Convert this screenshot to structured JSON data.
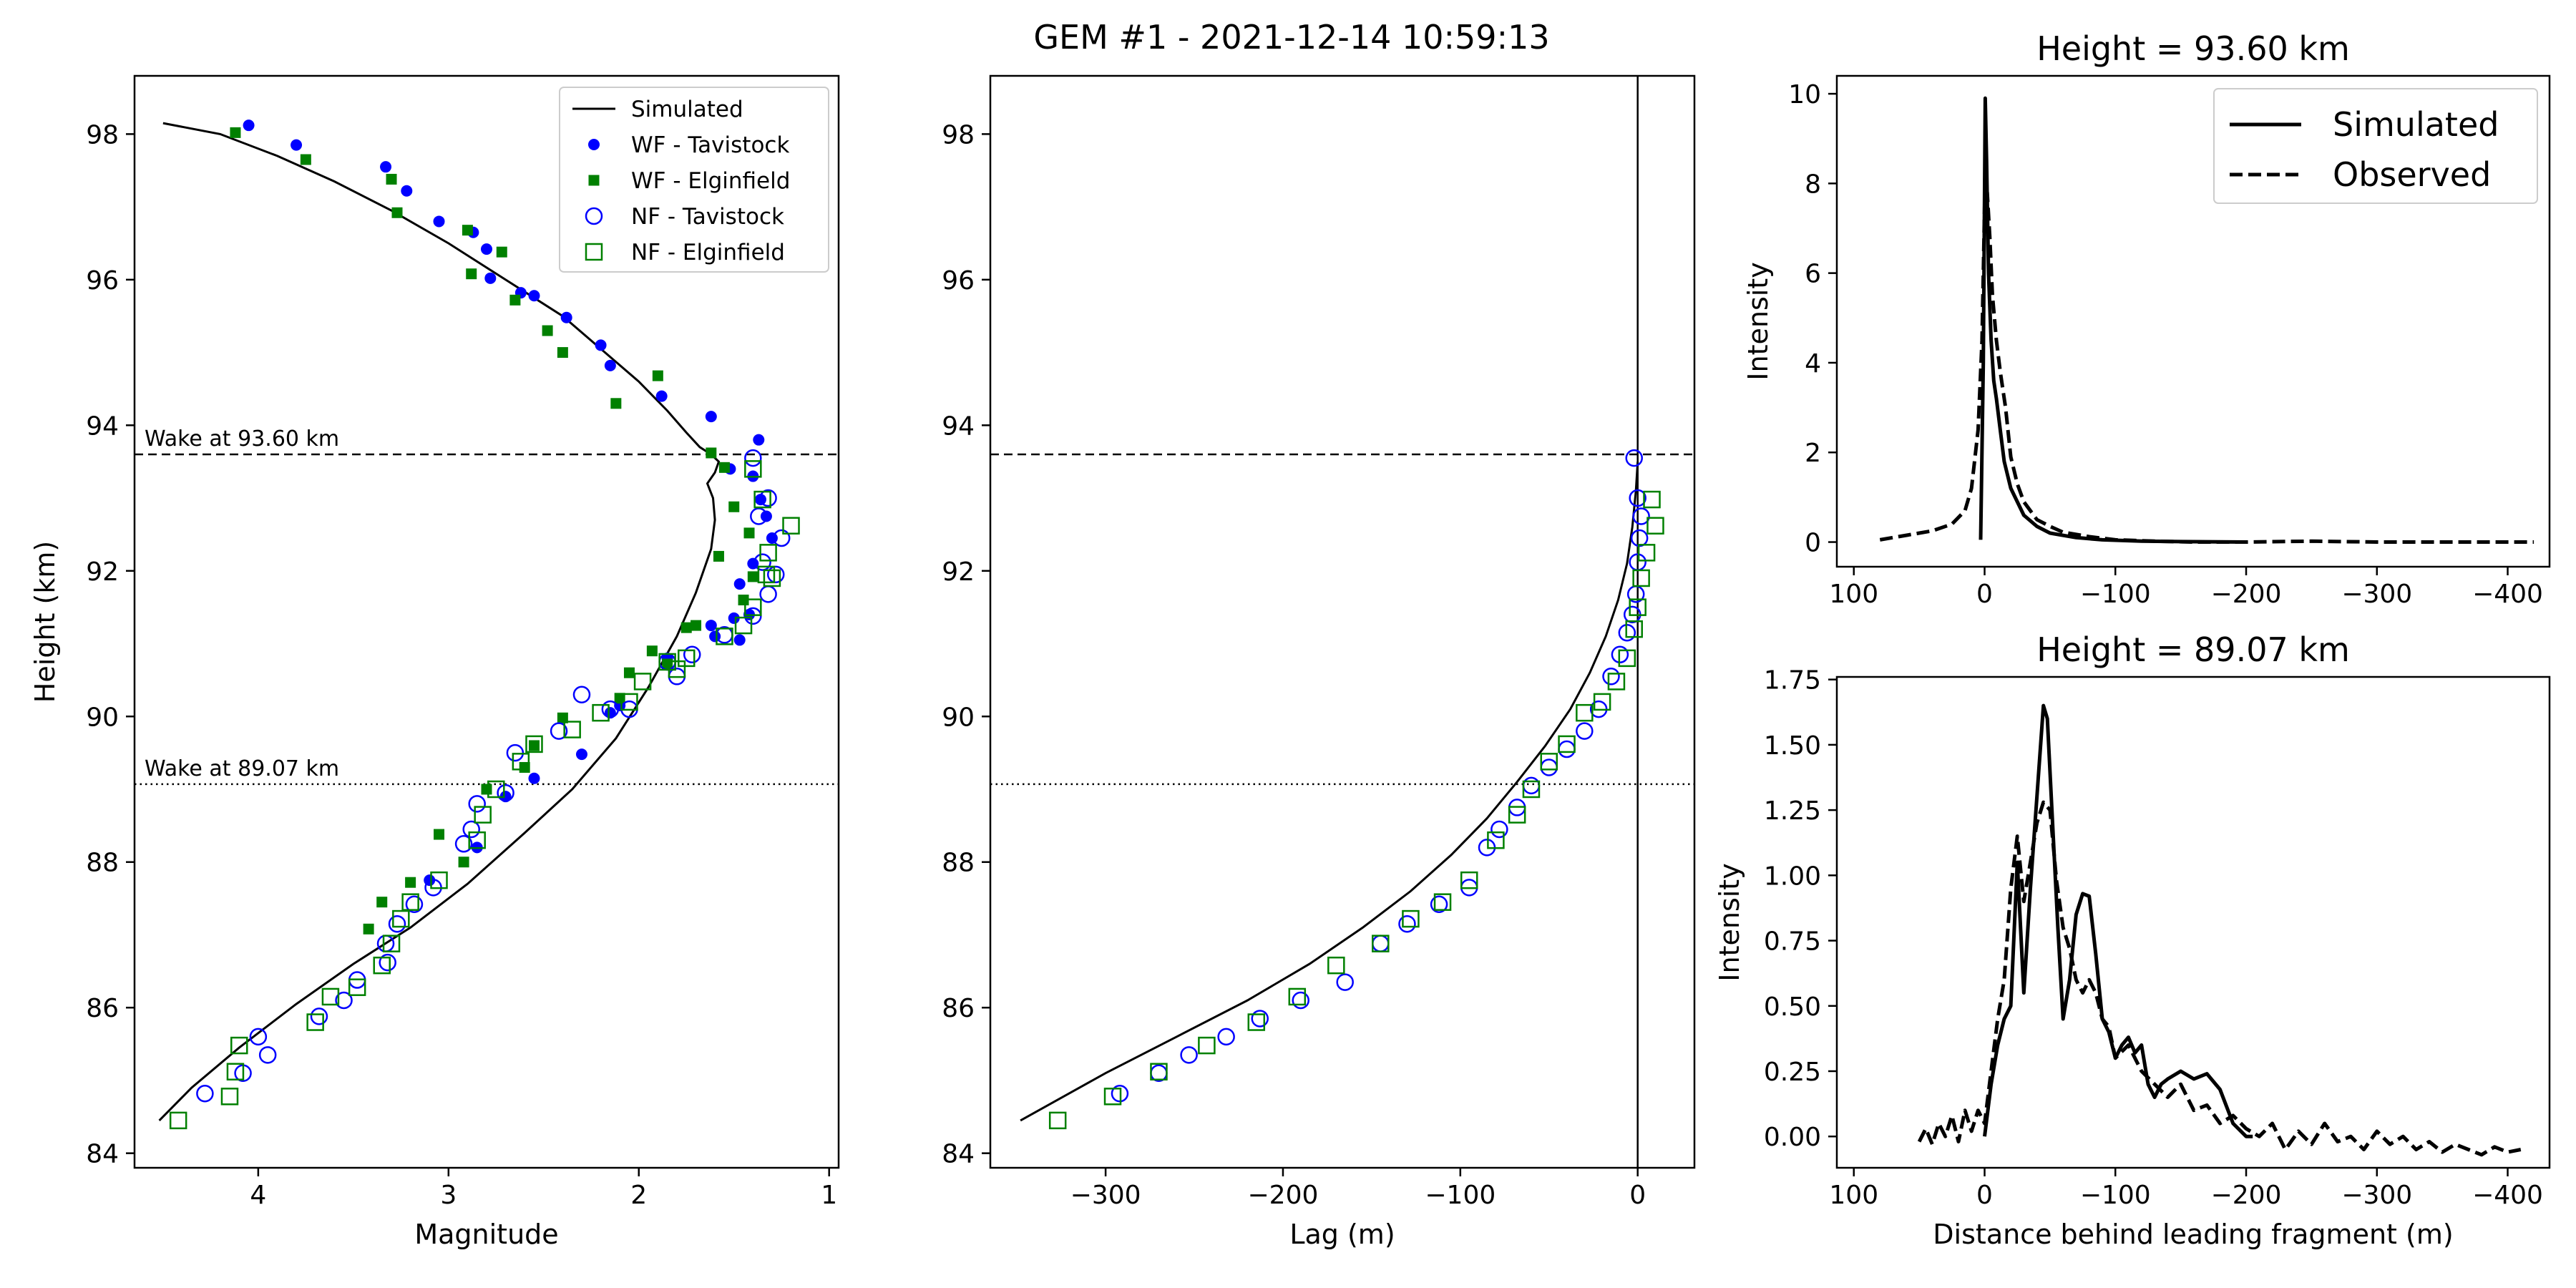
{
  "figure": {
    "suptitle": "GEM #1 - 2021-12-14 10:59:13"
  },
  "chart_data": [
    {
      "type": "scatter",
      "panel": "magnitude",
      "xlabel": "Magnitude",
      "ylabel": "Height (km)",
      "xlim": [
        4.65,
        0.95
      ],
      "ylim": [
        83.8,
        98.8
      ],
      "x_ticks": [
        4,
        3,
        2,
        1
      ],
      "y_ticks": [
        84,
        86,
        88,
        90,
        92,
        94,
        96,
        98
      ],
      "x_inverted": true,
      "legend_position": "upper right",
      "wake_lines": [
        {
          "height": 93.6,
          "label": "Wake at 93.60 km",
          "style": "dashed"
        },
        {
          "height": 89.07,
          "label": "Wake at 89.07 km",
          "style": "dotted"
        }
      ],
      "series": [
        {
          "name": "Simulated",
          "kind": "line",
          "color": "#000000",
          "x": [
            4.5,
            4.2,
            3.9,
            3.6,
            3.3,
            3.0,
            2.7,
            2.4,
            2.2,
            2.0,
            1.85,
            1.75,
            1.68,
            1.62,
            1.58,
            1.6,
            1.64,
            1.61,
            1.6,
            1.62,
            1.7,
            1.8,
            1.95,
            2.12,
            2.35,
            2.6,
            2.9,
            3.2,
            3.5,
            3.8,
            4.1,
            4.35,
            4.52
          ],
          "y": [
            98.15,
            98.0,
            97.7,
            97.35,
            96.95,
            96.5,
            96.0,
            95.5,
            95.05,
            94.6,
            94.2,
            93.9,
            93.7,
            93.6,
            93.5,
            93.35,
            93.2,
            93.0,
            92.7,
            92.3,
            91.7,
            91.1,
            90.4,
            89.7,
            89.0,
            88.4,
            87.7,
            87.1,
            86.6,
            86.05,
            85.45,
            84.9,
            84.45
          ]
        },
        {
          "name": "WF - Tavistock",
          "kind": "dot",
          "color": "#0000ff",
          "x": [
            4.05,
            3.8,
            3.33,
            3.22,
            3.05,
            2.87,
            2.8,
            2.78,
            2.62,
            2.55,
            2.38,
            2.2,
            2.15,
            1.88,
            1.62,
            1.52,
            1.37,
            1.4,
            1.36,
            1.33,
            1.3,
            1.4,
            1.47,
            1.42,
            1.5,
            1.47,
            1.6,
            1.62,
            1.85,
            2.1,
            2.15,
            2.3,
            2.55,
            2.7,
            2.85,
            3.1
          ],
          "y": [
            98.12,
            97.85,
            97.55,
            97.22,
            96.8,
            96.65,
            96.42,
            96.02,
            95.82,
            95.78,
            95.48,
            95.1,
            94.82,
            94.4,
            94.12,
            93.4,
            93.8,
            93.3,
            92.98,
            92.75,
            92.45,
            92.1,
            91.82,
            91.4,
            91.35,
            91.05,
            91.1,
            91.25,
            90.8,
            90.15,
            90.05,
            89.48,
            89.15,
            88.9,
            88.2,
            87.75
          ]
        },
        {
          "name": "WF - Elginfield",
          "kind": "square",
          "color": "#008000",
          "x": [
            4.12,
            3.75,
            3.3,
            3.27,
            2.9,
            2.88,
            2.72,
            2.65,
            2.48,
            2.4,
            2.12,
            1.9,
            1.62,
            1.55,
            1.5,
            1.42,
            1.4,
            1.45,
            1.58,
            1.7,
            1.75,
            1.85,
            1.93,
            2.05,
            2.1,
            2.4,
            2.55,
            2.6,
            2.8,
            2.92,
            3.05,
            3.2,
            3.35,
            3.42
          ],
          "y": [
            98.02,
            97.65,
            97.38,
            96.92,
            96.68,
            96.08,
            96.38,
            95.72,
            95.3,
            95.0,
            94.3,
            94.68,
            93.62,
            93.42,
            92.88,
            92.52,
            91.92,
            91.6,
            92.2,
            91.25,
            91.22,
            90.72,
            90.9,
            90.6,
            90.25,
            89.98,
            89.6,
            89.3,
            89.0,
            88.0,
            88.38,
            87.72,
            87.45,
            87.08
          ]
        },
        {
          "name": "NF - Tavistock",
          "kind": "open-circle",
          "color": "#0000ff",
          "x": [
            1.4,
            1.32,
            1.37,
            1.25,
            1.35,
            1.28,
            1.32,
            1.4,
            1.55,
            1.72,
            1.8,
            1.85,
            2.05,
            2.15,
            2.3,
            2.42,
            2.65,
            2.7,
            2.85,
            2.88,
            2.92,
            3.08,
            3.18,
            3.27,
            3.32,
            3.33,
            3.48,
            3.55,
            3.68,
            4.0,
            4.08,
            4.28,
            3.95
          ],
          "y": [
            93.55,
            93.0,
            92.75,
            92.45,
            92.12,
            91.95,
            91.68,
            91.38,
            91.12,
            90.85,
            90.55,
            90.75,
            90.1,
            90.1,
            90.3,
            89.8,
            89.5,
            88.95,
            88.8,
            88.45,
            88.25,
            87.65,
            87.42,
            87.15,
            86.62,
            86.88,
            86.38,
            86.1,
            85.88,
            85.6,
            85.1,
            84.82,
            85.35
          ]
        },
        {
          "name": "NF - Elginfield",
          "kind": "open-square",
          "color": "#008000",
          "x": [
            1.4,
            1.35,
            1.32,
            1.2,
            1.33,
            1.3,
            1.4,
            1.45,
            1.55,
            1.75,
            1.8,
            1.85,
            1.98,
            2.05,
            2.2,
            2.35,
            2.55,
            2.62,
            2.75,
            2.82,
            2.85,
            3.05,
            3.2,
            3.25,
            3.3,
            3.35,
            3.48,
            3.62,
            3.7,
            4.1,
            4.12,
            4.15,
            4.42
          ],
          "y": [
            93.4,
            92.98,
            92.25,
            92.62,
            91.95,
            91.9,
            91.5,
            91.25,
            91.1,
            90.8,
            90.65,
            90.75,
            90.48,
            90.2,
            90.05,
            89.82,
            89.62,
            89.38,
            89.0,
            88.65,
            88.3,
            87.75,
            87.45,
            87.22,
            86.88,
            86.58,
            86.28,
            86.15,
            85.8,
            85.48,
            85.12,
            84.78,
            84.45
          ]
        }
      ]
    },
    {
      "type": "scatter",
      "panel": "lag",
      "xlabel": "Lag (m)",
      "ylabel": "",
      "xlim": [
        -365,
        32
      ],
      "ylim": [
        83.8,
        98.8
      ],
      "x_ticks": [
        -300,
        -200,
        -100,
        0
      ],
      "y_ticks": [
        84,
        86,
        88,
        90,
        92,
        94,
        96,
        98
      ],
      "vertical_line_x": 0,
      "wake_lines": [
        {
          "height": 93.6,
          "style": "dashed"
        },
        {
          "height": 89.07,
          "style": "dotted"
        }
      ],
      "series": [
        {
          "name": "Simulated",
          "kind": "line",
          "color": "#000000",
          "x": [
            -348,
            -300,
            -260,
            -220,
            -185,
            -155,
            -128,
            -105,
            -85,
            -68,
            -52,
            -38,
            -27,
            -18,
            -11,
            -6,
            -3,
            -1,
            0
          ],
          "y": [
            84.45,
            85.1,
            85.6,
            86.1,
            86.6,
            87.1,
            87.6,
            88.1,
            88.6,
            89.1,
            89.6,
            90.1,
            90.6,
            91.1,
            91.6,
            92.1,
            92.6,
            93.1,
            93.5
          ]
        },
        {
          "name": "NF - Tavistock",
          "kind": "open-circle",
          "color": "#0000ff",
          "x": [
            -292,
            -270,
            -253,
            -232,
            -213,
            -190,
            -165,
            -145,
            -130,
            -112,
            -95,
            -85,
            -78,
            -68,
            -60,
            -50,
            -40,
            -30,
            -22,
            -15,
            -10,
            -6,
            -3,
            -1,
            0,
            1,
            2,
            0,
            -2
          ],
          "y": [
            84.82,
            85.1,
            85.35,
            85.6,
            85.85,
            86.1,
            86.35,
            86.88,
            87.15,
            87.42,
            87.65,
            88.2,
            88.45,
            88.75,
            89.05,
            89.3,
            89.55,
            89.8,
            90.1,
            90.55,
            90.85,
            91.15,
            91.4,
            91.68,
            92.12,
            92.45,
            92.75,
            93.0,
            93.55
          ]
        },
        {
          "name": "NF - Elginfield",
          "kind": "open-square",
          "color": "#008000",
          "x": [
            -327,
            -296,
            -270,
            -243,
            -215,
            -192,
            -170,
            -145,
            -128,
            -110,
            -95,
            -80,
            -68,
            -60,
            -50,
            -40,
            -30,
            -20,
            -12,
            -6,
            -2,
            0,
            2,
            5,
            10,
            8
          ],
          "y": [
            84.45,
            84.78,
            85.12,
            85.48,
            85.8,
            86.15,
            86.58,
            86.88,
            87.22,
            87.45,
            87.75,
            88.3,
            88.65,
            89.0,
            89.38,
            89.62,
            90.05,
            90.2,
            90.48,
            90.8,
            91.2,
            91.5,
            91.9,
            92.25,
            92.62,
            92.98
          ]
        }
      ]
    },
    {
      "type": "line",
      "panel": "profile-top",
      "title": "Height = 93.60 km",
      "ylabel": "Intensity",
      "xlim": [
        113,
        -432
      ],
      "ylim": [
        -0.55,
        10.4
      ],
      "x_ticks": [
        100,
        0,
        -100,
        -200,
        -300,
        -400
      ],
      "x_tick_labels": [
        "100",
        "0",
        "−100",
        "−200",
        "−300",
        "−400"
      ],
      "y_ticks": [
        0,
        2,
        4,
        6,
        8,
        10
      ],
      "legend_position": "upper right",
      "series": [
        {
          "name": "Simulated",
          "style": "solid",
          "x": [
            3,
            1,
            -0.5,
            -1.5,
            -3,
            -5,
            -7,
            -9,
            -12,
            -15,
            -20,
            -30,
            -40,
            -50,
            -70,
            -90,
            -120,
            -150,
            -200
          ],
          "y": [
            0.05,
            4.0,
            9.9,
            8.5,
            6.0,
            4.5,
            3.6,
            3.2,
            2.5,
            1.8,
            1.2,
            0.6,
            0.35,
            0.2,
            0.1,
            0.05,
            0.02,
            0.01,
            0.0
          ]
        },
        {
          "name": "Observed",
          "style": "dashed",
          "x": [
            80,
            60,
            40,
            25,
            15,
            10,
            5,
            2,
            0,
            -2,
            -4,
            -6,
            -9,
            -12,
            -16,
            -20,
            -25,
            -30,
            -40,
            -50,
            -60,
            -80,
            -100,
            -130,
            -160,
            -200,
            -250,
            -300,
            -350,
            -400,
            -420
          ],
          "y": [
            0.05,
            0.15,
            0.25,
            0.4,
            0.7,
            1.2,
            2.5,
            4.5,
            7.5,
            7.8,
            6.8,
            5.5,
            4.5,
            3.8,
            3.0,
            1.9,
            1.3,
            0.9,
            0.5,
            0.35,
            0.22,
            0.12,
            0.05,
            0.02,
            0.0,
            0.0,
            0.02,
            0.0,
            0.0,
            0.0,
            0.0
          ]
        }
      ]
    },
    {
      "type": "line",
      "panel": "profile-bottom",
      "title": "Height = 89.07 km",
      "xlabel": "Distance behind leading fragment (m)",
      "ylabel": "Intensity",
      "xlim": [
        113,
        -432
      ],
      "ylim": [
        -0.12,
        1.76
      ],
      "x_ticks": [
        100,
        0,
        -100,
        -200,
        -300,
        -400
      ],
      "x_tick_labels": [
        "100",
        "0",
        "−100",
        "−200",
        "−300",
        "−400"
      ],
      "y_ticks": [
        0.0,
        0.25,
        0.5,
        0.75,
        1.0,
        1.25,
        1.5,
        1.75
      ],
      "y_tick_labels": [
        "0.00",
        "0.25",
        "0.50",
        "0.75",
        "1.00",
        "1.25",
        "1.50",
        "1.75"
      ],
      "series": [
        {
          "name": "Simulated",
          "style": "solid",
          "x": [
            0,
            -5,
            -10,
            -15,
            -20,
            -25,
            -30,
            -35,
            -40,
            -45,
            -48,
            -52,
            -56,
            -60,
            -65,
            -70,
            -75,
            -80,
            -85,
            -90,
            -95,
            -100,
            -105,
            -110,
            -115,
            -120,
            -125,
            -130,
            -135,
            -140,
            -150,
            -160,
            -170,
            -180,
            -190,
            -200,
            -205
          ],
          "y": [
            0.0,
            0.2,
            0.35,
            0.45,
            0.5,
            1.05,
            0.55,
            0.95,
            1.3,
            1.65,
            1.6,
            1.2,
            0.8,
            0.45,
            0.6,
            0.85,
            0.93,
            0.92,
            0.7,
            0.45,
            0.4,
            0.3,
            0.35,
            0.38,
            0.32,
            0.35,
            0.2,
            0.15,
            0.2,
            0.22,
            0.25,
            0.22,
            0.24,
            0.18,
            0.05,
            0.0,
            0.0
          ]
        },
        {
          "name": "Observed",
          "style": "dashed",
          "x": [
            50,
            45,
            40,
            35,
            30,
            25,
            20,
            15,
            10,
            5,
            0,
            -5,
            -10,
            -15,
            -20,
            -25,
            -30,
            -35,
            -40,
            -45,
            -50,
            -55,
            -60,
            -65,
            -70,
            -75,
            -80,
            -85,
            -90,
            -95,
            -100,
            -110,
            -120,
            -130,
            -140,
            -150,
            -160,
            -170,
            -180,
            -190,
            -200,
            -210,
            -220,
            -230,
            -240,
            -250,
            -260,
            -270,
            -280,
            -290,
            -300,
            -310,
            -320,
            -330,
            -340,
            -350,
            -360,
            -370,
            -380,
            -390,
            -400,
            -410
          ],
          "y": [
            -0.02,
            0.03,
            -0.03,
            0.05,
            0.0,
            0.08,
            -0.02,
            0.1,
            0.02,
            0.1,
            0.05,
            0.25,
            0.45,
            0.6,
            0.95,
            1.15,
            0.9,
            1.05,
            1.2,
            1.28,
            1.25,
            0.98,
            0.8,
            0.72,
            0.6,
            0.55,
            0.6,
            0.55,
            0.45,
            0.42,
            0.3,
            0.35,
            0.25,
            0.2,
            0.15,
            0.2,
            0.1,
            0.12,
            0.05,
            0.08,
            0.03,
            0.0,
            0.05,
            -0.05,
            0.02,
            -0.03,
            0.05,
            -0.02,
            0.0,
            -0.05,
            0.02,
            -0.03,
            0.0,
            -0.05,
            -0.02,
            -0.06,
            -0.03,
            -0.05,
            -0.07,
            -0.04,
            -0.06,
            -0.05
          ]
        }
      ]
    }
  ]
}
